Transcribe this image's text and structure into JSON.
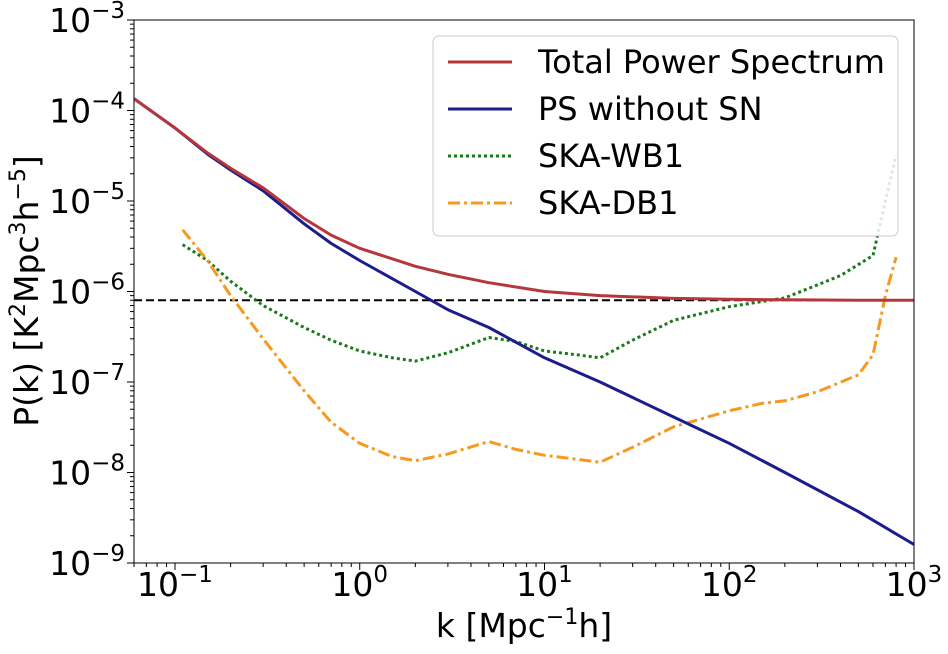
{
  "chart_data": {
    "type": "line",
    "xlabel": "k [Mpc",
    "xlabel_sup": "−1",
    "xlabel_tail": "h]",
    "ylabel": "P(k) [K",
    "ylabel_sup1": "2",
    "ylabel_mid1": "Mpc",
    "ylabel_sup2": "3",
    "ylabel_mid2": "h",
    "ylabel_sup3": "−5",
    "ylabel_tail": "]",
    "x_scale": "log",
    "y_scale": "log",
    "xlim": [
      0.06,
      1000
    ],
    "ylim": [
      1e-09,
      0.001
    ],
    "grid": false,
    "legend_position": "top-right",
    "x_ticks": [
      {
        "value": 0.1,
        "base": "10",
        "exp": "−1"
      },
      {
        "value": 1,
        "base": "10",
        "exp": "0"
      },
      {
        "value": 10,
        "base": "10",
        "exp": "1"
      },
      {
        "value": 100,
        "base": "10",
        "exp": "2"
      },
      {
        "value": 1000,
        "base": "10",
        "exp": "3"
      }
    ],
    "y_ticks": [
      {
        "value": 1e-09,
        "base": "10",
        "exp": "−9"
      },
      {
        "value": 1e-08,
        "base": "10",
        "exp": "−8"
      },
      {
        "value": 1e-07,
        "base": "10",
        "exp": "−7"
      },
      {
        "value": 1e-06,
        "base": "10",
        "exp": "−6"
      },
      {
        "value": 1e-05,
        "base": "10",
        "exp": "−5"
      },
      {
        "value": 0.0001,
        "base": "10",
        "exp": "−4"
      },
      {
        "value": 0.001,
        "base": "10",
        "exp": "−3"
      }
    ],
    "reference_line": {
      "y": 8e-07,
      "color": "#000000",
      "style": "dashed"
    },
    "series": [
      {
        "name": "Total Power Spectrum",
        "color": "#b5373b",
        "style": "solid",
        "x": [
          0.06,
          0.1,
          0.15,
          0.2,
          0.3,
          0.5,
          0.7,
          1,
          2,
          3,
          5,
          10,
          20,
          50,
          100,
          200,
          500,
          1000
        ],
        "y": [
          0.000135,
          6.4e-05,
          3.4e-05,
          2.3e-05,
          1.4e-05,
          6.4e-06,
          4.2e-06,
          3e-06,
          1.9e-06,
          1.55e-06,
          1.25e-06,
          1e-06,
          9e-07,
          8.4e-07,
          8.2e-07,
          8.1e-07,
          8e-07,
          8e-07
        ]
      },
      {
        "name": "PS without SN",
        "color": "#1c1c8c",
        "style": "solid",
        "x": [
          0.06,
          0.1,
          0.15,
          0.2,
          0.3,
          0.5,
          0.7,
          1,
          2,
          3,
          5,
          10,
          20,
          50,
          100,
          200,
          500,
          1000
        ],
        "y": [
          0.000135,
          6.4e-05,
          3.3e-05,
          2.2e-05,
          1.3e-05,
          5.6e-06,
          3.4e-06,
          2.2e-06,
          1e-06,
          6.3e-07,
          4e-07,
          1.85e-07,
          1e-07,
          4.1e-08,
          2.1e-08,
          1e-08,
          3.7e-09,
          1.6e-09
        ]
      },
      {
        "name": "SKA-WB1",
        "color": "#1a7a1a",
        "style": "dotted",
        "x": [
          0.11,
          0.15,
          0.2,
          0.3,
          0.5,
          0.7,
          1,
          1.5,
          2,
          3,
          5,
          7,
          10,
          15,
          20,
          30,
          50,
          100,
          200,
          400,
          600,
          700,
          800
        ],
        "y": [
          3.3e-06,
          2.2e-06,
          1.3e-06,
          7e-07,
          4e-07,
          2.9e-07,
          2.2e-07,
          1.85e-07,
          1.7e-07,
          2.1e-07,
          3.1e-07,
          2.8e-07,
          2.2e-07,
          2e-07,
          1.85e-07,
          2.9e-07,
          4.8e-07,
          6.8e-07,
          8.5e-07,
          1.5e-06,
          2.5e-06,
          1e-05,
          3.2e-05
        ]
      },
      {
        "name": "SKA-DB1",
        "color": "#f59a1e",
        "style": "dashdot",
        "x": [
          0.11,
          0.15,
          0.2,
          0.3,
          0.5,
          0.7,
          1,
          1.5,
          2,
          3,
          5,
          7,
          10,
          15,
          20,
          30,
          50,
          100,
          150,
          200,
          300,
          500,
          600,
          700,
          800
        ],
        "y": [
          4.8e-06,
          2.2e-06,
          9e-07,
          3e-07,
          8e-08,
          3.6e-08,
          2.1e-08,
          1.5e-08,
          1.35e-08,
          1.6e-08,
          2.2e-08,
          1.8e-08,
          1.55e-08,
          1.4e-08,
          1.3e-08,
          1.9e-08,
          3.2e-08,
          4.8e-08,
          5.8e-08,
          6.2e-08,
          7.8e-08,
          1.2e-07,
          2e-07,
          9e-07,
          2.4e-06
        ]
      }
    ]
  }
}
